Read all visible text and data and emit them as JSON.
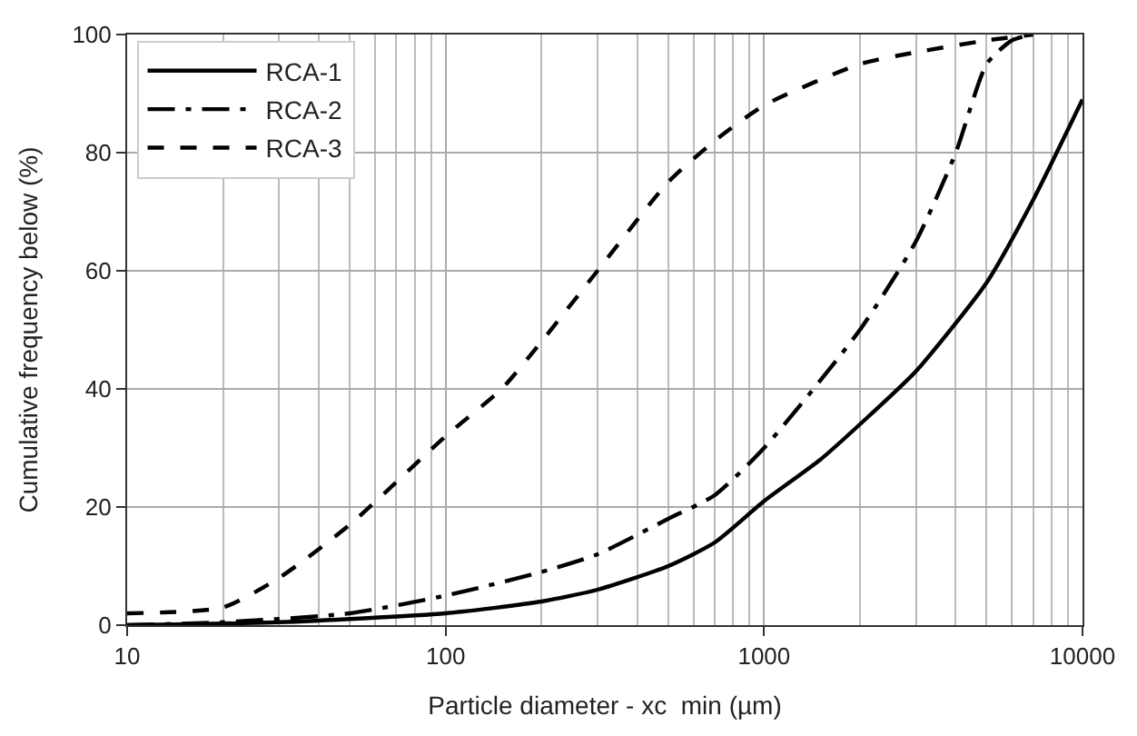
{
  "chart_data": {
    "type": "line",
    "xlabel": "Particle diameter - xc  min (µm)",
    "ylabel": "Cumulative frequency below (%)",
    "log": "x",
    "xlim": [
      10,
      10000
    ],
    "xticks": [
      10,
      100,
      1000,
      10000
    ],
    "ylim": [
      0,
      100
    ],
    "yticks": [
      0,
      20,
      40,
      60,
      80,
      100
    ],
    "grid": true,
    "legend": "top left",
    "series": [
      {
        "name": "RCA-1",
        "color": "#000000",
        "line_style": "solid",
        "x": [
          10,
          30,
          100,
          200,
          300,
          500,
          700,
          1000,
          1500,
          2000,
          3000,
          5000,
          7000,
          10000
        ],
        "values": [
          0,
          0.5,
          2,
          4,
          6,
          10,
          14,
          21,
          28,
          34,
          43,
          58,
          72,
          89
        ]
      },
      {
        "name": "RCA-2",
        "color": "#000000",
        "line_style": "dashdot",
        "x": [
          10,
          20,
          50,
          100,
          200,
          300,
          500,
          700,
          1000,
          2000,
          3000,
          4000,
          5000,
          6000,
          7000
        ],
        "values": [
          0,
          0.5,
          2,
          5,
          9,
          12,
          18,
          22,
          30,
          50,
          65,
          80,
          95,
          99,
          100
        ]
      },
      {
        "name": "RCA-3",
        "color": "#000000",
        "line_style": "dashed",
        "x": [
          10,
          20,
          30,
          50,
          100,
          150,
          200,
          300,
          500,
          700,
          1000,
          2000,
          3000,
          5000,
          7000
        ],
        "values": [
          2,
          3,
          8,
          17,
          32,
          40,
          48,
          60,
          75,
          82,
          88,
          95,
          97,
          99,
          100
        ]
      }
    ]
  }
}
